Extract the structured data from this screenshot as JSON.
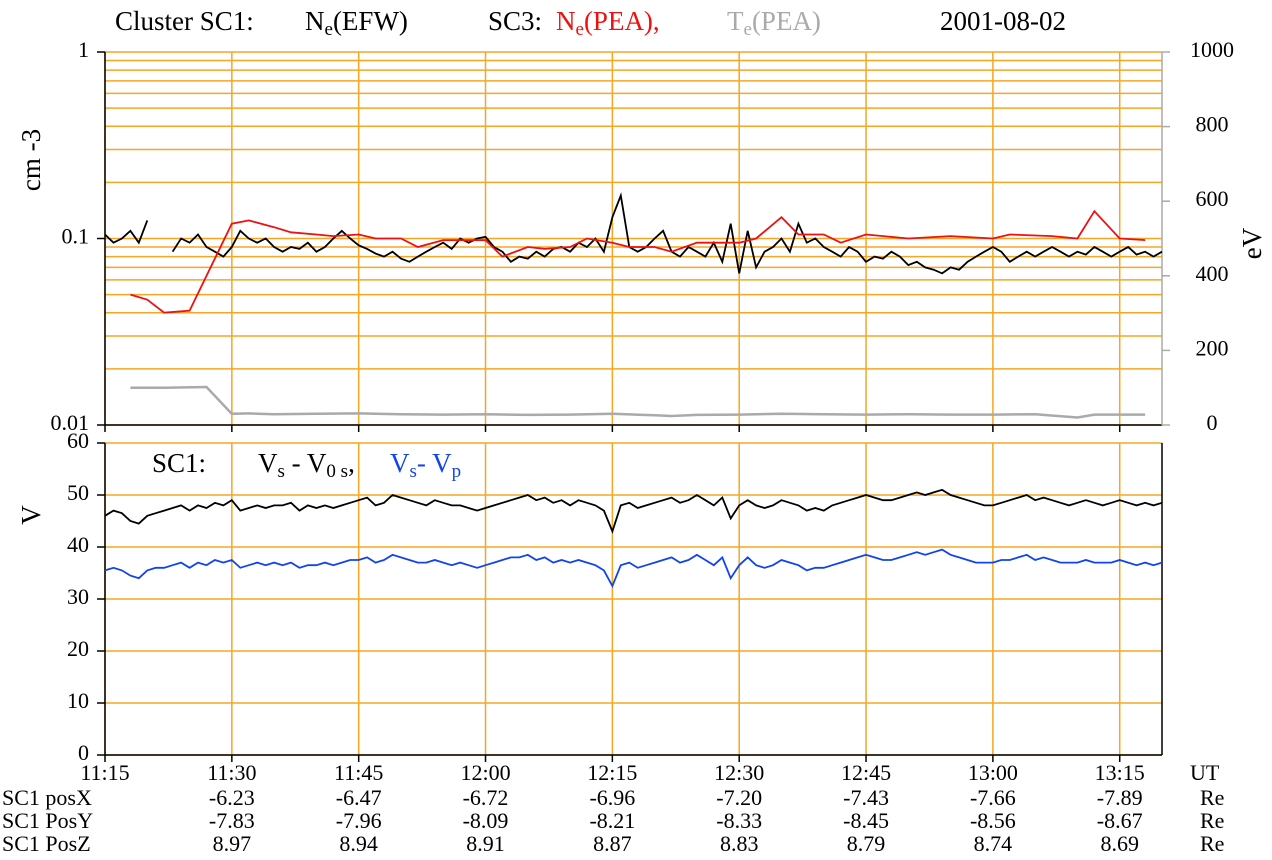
{
  "chart_data": [
    {
      "type": "line",
      "title": "Cluster SC1:",
      "annotation": "SC3:",
      "date": "2001-08-02",
      "ylabel": "cm -3",
      "y2label": "eV",
      "log_y": true,
      "grid": true,
      "grid_color": "#f5a623",
      "xlim": [
        "11:15",
        "13:20"
      ],
      "xticks": [
        "11:15",
        "11:30",
        "11:45",
        "12:00",
        "12:15",
        "12:30",
        "12:45",
        "13:00",
        "13:15"
      ],
      "ylim": [
        0.01,
        1
      ],
      "yticks": [
        0.01,
        0.1,
        1
      ],
      "minor_yticks": [
        0.02,
        0.03,
        0.04,
        0.05,
        0.06,
        0.07,
        0.08,
        0.09,
        0.2,
        0.3,
        0.4,
        0.5,
        0.6,
        0.7,
        0.8,
        0.9
      ],
      "y2lim": [
        0,
        1000
      ],
      "y2ticks": [
        0,
        200,
        400,
        600,
        800,
        1000
      ],
      "y2_color": "#aaaaaa",
      "x": [
        "11:15",
        "11:16",
        "11:17",
        "11:18",
        "11:19",
        "11:20",
        "11:21",
        "11:22",
        "11:23",
        "11:24",
        "11:25",
        "11:26",
        "11:27",
        "11:28",
        "11:29",
        "11:30",
        "11:31",
        "11:32",
        "11:33",
        "11:34",
        "11:35",
        "11:36",
        "11:37",
        "11:38",
        "11:39",
        "11:40",
        "11:41",
        "11:42",
        "11:43",
        "11:44",
        "11:45",
        "11:46",
        "11:47",
        "11:48",
        "11:49",
        "11:50",
        "11:51",
        "11:52",
        "11:53",
        "11:54",
        "11:55",
        "11:56",
        "11:57",
        "11:58",
        "11:59",
        "12:00",
        "12:01",
        "12:02",
        "12:03",
        "12:04",
        "12:05",
        "12:06",
        "12:07",
        "12:08",
        "12:09",
        "12:10",
        "12:11",
        "12:12",
        "12:13",
        "12:14",
        "12:15",
        "12:16",
        "12:17",
        "12:18",
        "12:19",
        "12:20",
        "12:21",
        "12:22",
        "12:23",
        "12:24",
        "12:25",
        "12:26",
        "12:27",
        "12:28",
        "12:29",
        "12:30",
        "12:31",
        "12:32",
        "12:33",
        "12:34",
        "12:35",
        "12:36",
        "12:37",
        "12:38",
        "12:39",
        "12:40",
        "12:41",
        "12:42",
        "12:43",
        "12:44",
        "12:45",
        "12:46",
        "12:47",
        "12:48",
        "12:49",
        "12:50",
        "12:51",
        "12:52",
        "12:53",
        "12:54",
        "12:55",
        "12:56",
        "12:57",
        "12:58",
        "12:59",
        "13:00",
        "13:01",
        "13:02",
        "13:03",
        "13:04",
        "13:05",
        "13:06",
        "13:07",
        "13:08",
        "13:09",
        "13:10",
        "13:11",
        "13:12",
        "13:13",
        "13:14",
        "13:15",
        "13:16",
        "13:17",
        "13:18",
        "13:19",
        "13:20"
      ],
      "series": [
        {
          "name": [
            "N",
            "e",
            "(EFW)"
          ],
          "color": "#000000",
          "values": [
            0.105,
            0.095,
            0.1,
            0.11,
            0.095,
            0.125,
            null,
            null,
            0.085,
            0.1,
            0.095,
            0.105,
            0.09,
            0.085,
            0.08,
            0.09,
            0.11,
            0.1,
            0.095,
            0.1,
            0.09,
            0.085,
            0.09,
            0.088,
            0.095,
            0.085,
            0.09,
            0.1,
            0.11,
            0.1,
            0.092,
            0.088,
            0.083,
            0.08,
            0.085,
            0.078,
            0.075,
            0.08,
            0.085,
            0.09,
            0.095,
            0.088,
            0.1,
            0.095,
            0.1,
            0.102,
            0.09,
            0.085,
            0.075,
            0.08,
            0.078,
            0.085,
            0.08,
            0.088,
            0.09,
            0.085,
            0.095,
            0.09,
            0.1,
            0.085,
            0.13,
            0.17,
            0.09,
            0.085,
            0.09,
            0.1,
            0.11,
            0.085,
            0.08,
            0.09,
            0.085,
            0.08,
            0.095,
            0.075,
            0.12,
            0.065,
            0.11,
            0.07,
            0.085,
            0.09,
            0.1,
            0.085,
            0.12,
            0.095,
            0.1,
            0.09,
            0.085,
            0.08,
            0.09,
            0.085,
            0.075,
            0.08,
            0.078,
            0.085,
            0.08,
            0.072,
            0.075,
            0.07,
            0.068,
            0.065,
            0.07,
            0.068,
            0.075,
            0.08,
            0.085,
            0.09,
            0.085,
            0.075,
            0.08,
            0.085,
            0.08,
            0.085,
            0.09,
            0.085,
            0.08,
            0.085,
            0.082,
            0.09,
            0.085,
            0.08,
            0.085,
            0.09,
            0.082,
            0.085,
            0.08,
            0.085
          ]
        },
        {
          "name": [
            "N",
            "e",
            "(PEA),"
          ],
          "color": "#ee1111",
          "x": [
            "11:18",
            "11:20",
            "11:22",
            "11:25",
            "11:30",
            "11:32",
            "11:35",
            "11:37",
            "11:40",
            "11:42",
            "11:45",
            "11:47",
            "11:50",
            "11:52",
            "11:55",
            "11:57",
            "12:00",
            "12:02",
            "12:05",
            "12:07",
            "12:10",
            "12:12",
            "12:15",
            "12:17",
            "12:20",
            "12:22",
            "12:25",
            "12:27",
            "12:30",
            "12:32",
            "12:35",
            "12:37",
            "12:40",
            "12:42",
            "12:45",
            "12:50",
            "12:55",
            "13:00",
            "13:02",
            "13:07",
            "13:10",
            "13:12",
            "13:15",
            "13:18"
          ],
          "values": [
            0.05,
            0.047,
            0.04,
            0.041,
            0.12,
            0.125,
            0.115,
            0.108,
            0.105,
            0.103,
            0.105,
            0.1,
            0.1,
            0.09,
            0.098,
            0.098,
            0.098,
            0.08,
            0.09,
            0.088,
            0.09,
            0.1,
            0.095,
            0.09,
            0.09,
            0.085,
            0.095,
            0.095,
            0.095,
            0.1,
            0.13,
            0.105,
            0.105,
            0.095,
            0.105,
            0.1,
            0.103,
            0.1,
            0.105,
            0.103,
            0.1,
            0.14,
            0.1,
            0.098
          ]
        },
        {
          "name": [
            "T",
            "e",
            "(PEA)"
          ],
          "color": "#aaaaaa",
          "axis": "y2",
          "x": [
            "11:18",
            "11:22",
            "11:27",
            "11:30",
            "11:32",
            "11:35",
            "11:40",
            "11:45",
            "11:50",
            "11:55",
            "12:00",
            "12:05",
            "12:10",
            "12:15",
            "12:20",
            "12:22",
            "12:25",
            "12:30",
            "12:35",
            "12:40",
            "12:45",
            "12:50",
            "12:55",
            "13:00",
            "13:05",
            "13:10",
            "13:12",
            "13:18"
          ],
          "values": [
            100,
            100,
            102,
            30,
            31,
            29,
            30,
            31,
            29,
            28,
            29,
            27,
            28,
            30,
            26,
            24,
            27,
            28,
            30,
            29,
            28,
            29,
            28,
            28,
            29,
            20,
            28,
            28
          ]
        }
      ]
    },
    {
      "type": "line",
      "annotation": "SC1:",
      "ylabel": "V",
      "grid": true,
      "grid_color": "#f5a623",
      "xlim": [
        "11:15",
        "13:20"
      ],
      "xticks": [
        "11:15",
        "11:30",
        "11:45",
        "12:00",
        "12:15",
        "12:30",
        "12:45",
        "13:00",
        "13:15"
      ],
      "xunit": "UT",
      "ylim": [
        0,
        60
      ],
      "yticks": [
        0,
        10,
        20,
        30,
        40,
        50,
        60
      ],
      "x": [
        "11:15",
        "11:16",
        "11:17",
        "11:18",
        "11:19",
        "11:20",
        "11:21",
        "11:22",
        "11:23",
        "11:24",
        "11:25",
        "11:26",
        "11:27",
        "11:28",
        "11:29",
        "11:30",
        "11:31",
        "11:32",
        "11:33",
        "11:34",
        "11:35",
        "11:36",
        "11:37",
        "11:38",
        "11:39",
        "11:40",
        "11:41",
        "11:42",
        "11:43",
        "11:44",
        "11:45",
        "11:46",
        "11:47",
        "11:48",
        "11:49",
        "11:50",
        "11:51",
        "11:52",
        "11:53",
        "11:54",
        "11:55",
        "11:56",
        "11:57",
        "11:58",
        "11:59",
        "12:00",
        "12:01",
        "12:02",
        "12:03",
        "12:04",
        "12:05",
        "12:06",
        "12:07",
        "12:08",
        "12:09",
        "12:10",
        "12:11",
        "12:12",
        "12:13",
        "12:14",
        "12:15",
        "12:16",
        "12:17",
        "12:18",
        "12:19",
        "12:20",
        "12:21",
        "12:22",
        "12:23",
        "12:24",
        "12:25",
        "12:26",
        "12:27",
        "12:28",
        "12:29",
        "12:30",
        "12:31",
        "12:32",
        "12:33",
        "12:34",
        "12:35",
        "12:36",
        "12:37",
        "12:38",
        "12:39",
        "12:40",
        "12:41",
        "12:42",
        "12:43",
        "12:44",
        "12:45",
        "12:46",
        "12:47",
        "12:48",
        "12:49",
        "12:50",
        "12:51",
        "12:52",
        "12:53",
        "12:54",
        "12:55",
        "12:56",
        "12:57",
        "12:58",
        "12:59",
        "13:00",
        "13:01",
        "13:02",
        "13:03",
        "13:04",
        "13:05",
        "13:06",
        "13:07",
        "13:08",
        "13:09",
        "13:10",
        "13:11",
        "13:12",
        "13:13",
        "13:14",
        "13:15",
        "13:16",
        "13:17",
        "13:18",
        "13:19",
        "13:20"
      ],
      "series": [
        {
          "name": [
            "V",
            "s",
            " - V",
            "0 s",
            ","
          ],
          "color": "#000000",
          "values": [
            46,
            47,
            46.5,
            45,
            44.5,
            46,
            46.5,
            47,
            47.5,
            48,
            47,
            48,
            47.5,
            48.5,
            48,
            49,
            47,
            47.5,
            48,
            47.5,
            48,
            48,
            48.5,
            47,
            48,
            47.5,
            48,
            47.5,
            48,
            48.5,
            49,
            49.5,
            48,
            48.5,
            50,
            49.5,
            49,
            48.5,
            48,
            49,
            48.5,
            48,
            48,
            47.5,
            47,
            47.5,
            48,
            48.5,
            49,
            49.5,
            50,
            49,
            49.5,
            48.5,
            49,
            48,
            49,
            48.5,
            48,
            47,
            43,
            48,
            48.5,
            47.5,
            48,
            48.5,
            49,
            49.5,
            48.5,
            49,
            50,
            49,
            48,
            49.5,
            45.5,
            48,
            49,
            48,
            47.5,
            48,
            49,
            48.5,
            48,
            47,
            47.5,
            47,
            48,
            48.5,
            49,
            49.5,
            50,
            49.5,
            49,
            49,
            49.5,
            50,
            50.5,
            50,
            50.5,
            51,
            50,
            49.5,
            49,
            48.5,
            48,
            48,
            48.5,
            49,
            49.5,
            50,
            49,
            49.5,
            49,
            48.5,
            48,
            48.5,
            49,
            48.5,
            48,
            48.5,
            49,
            48.5,
            48,
            48.5,
            48,
            48.5
          ]
        },
        {
          "name": [
            "V",
            "s",
            "- V",
            "p"
          ],
          "color": "#1144ee",
          "values": [
            35.5,
            36,
            35.5,
            34.5,
            34,
            35.5,
            36,
            36,
            36.5,
            37,
            36,
            37,
            36.5,
            37.5,
            37,
            37.5,
            36,
            36.5,
            37,
            36.5,
            37,
            36.5,
            37,
            36,
            36.5,
            36.5,
            37,
            36.5,
            37,
            37.5,
            37.5,
            38,
            37,
            37.5,
            38.5,
            38,
            37.5,
            37,
            37,
            37.5,
            37,
            36.5,
            37,
            36.5,
            36,
            36.5,
            37,
            37.5,
            38,
            38,
            38.5,
            37.5,
            38,
            37,
            37.5,
            37,
            37.5,
            37,
            36.5,
            35.5,
            32.5,
            36.5,
            37,
            36,
            36.5,
            37,
            37.5,
            38,
            37,
            37.5,
            38.5,
            37.5,
            36.5,
            38,
            34,
            36.5,
            38,
            36.5,
            36,
            36.5,
            37.5,
            37,
            36.5,
            35.5,
            36,
            36,
            36.5,
            37,
            37.5,
            38,
            38.5,
            38,
            37.5,
            37.5,
            38,
            38.5,
            39,
            38.5,
            39,
            39.5,
            38.5,
            38,
            37.5,
            37,
            37,
            37,
            37.5,
            37.5,
            38,
            38.5,
            37.5,
            38,
            37.5,
            37,
            37,
            37,
            37.5,
            37,
            37,
            37,
            37.5,
            37,
            36.5,
            37,
            36.5,
            37
          ]
        }
      ]
    }
  ],
  "positions": {
    "unit": "Re",
    "columns": [
      "11:30",
      "11:45",
      "12:00",
      "12:15",
      "12:30",
      "12:45",
      "13:00",
      "13:15"
    ],
    "rows": [
      {
        "label": "SC1 posX",
        "values": [
          "-6.23",
          "-6.47",
          "-6.72",
          "-6.96",
          "-7.20",
          "-7.43",
          "-7.66",
          "-7.89"
        ]
      },
      {
        "label": "SC1 PosY",
        "values": [
          "-7.83",
          "-7.96",
          "-8.09",
          "-8.21",
          "-8.33",
          "-8.45",
          "-8.56",
          "-8.67"
        ]
      },
      {
        "label": "SC1 PosZ",
        "values": [
          "8.97",
          "8.94",
          "8.91",
          "8.87",
          "8.83",
          "8.79",
          "8.74",
          "8.69"
        ]
      }
    ]
  }
}
